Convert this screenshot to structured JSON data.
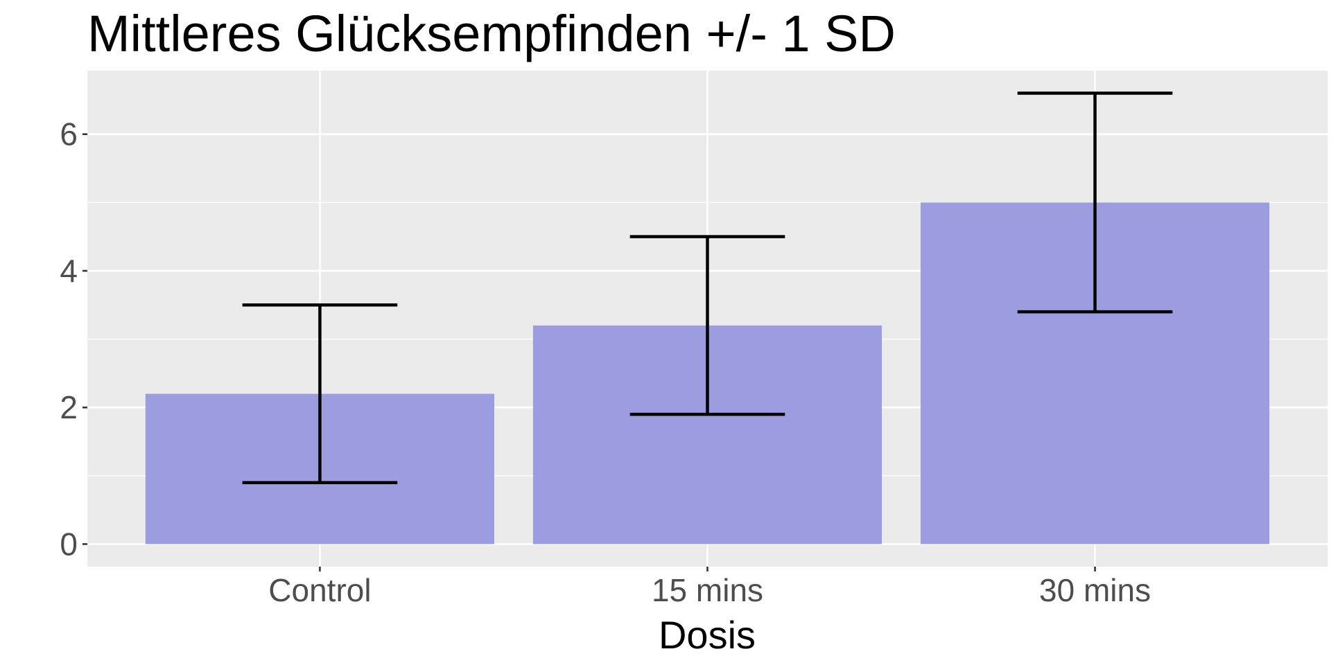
{
  "chart_data": {
    "type": "bar",
    "title": "Mittleres Glücksempfinden +/- 1 SD",
    "xlabel": "Dosis",
    "ylabel": "",
    "categories": [
      "Control",
      "15 mins",
      "30 mins"
    ],
    "values": [
      2.2,
      3.2,
      5.0
    ],
    "error_lower": [
      0.9,
      1.9,
      3.4
    ],
    "error_upper": [
      3.5,
      4.5,
      6.6
    ],
    "ylim": [
      -0.33,
      6.93
    ],
    "yticks": [
      0,
      2,
      4,
      6
    ],
    "ytick_labels": [
      "0",
      "2",
      "4",
      "6"
    ],
    "grid": true,
    "colors": {
      "bar": "#9b9de0",
      "panel": "#ebebeb",
      "grid": "#ffffff",
      "errorbar": "#000000"
    }
  }
}
